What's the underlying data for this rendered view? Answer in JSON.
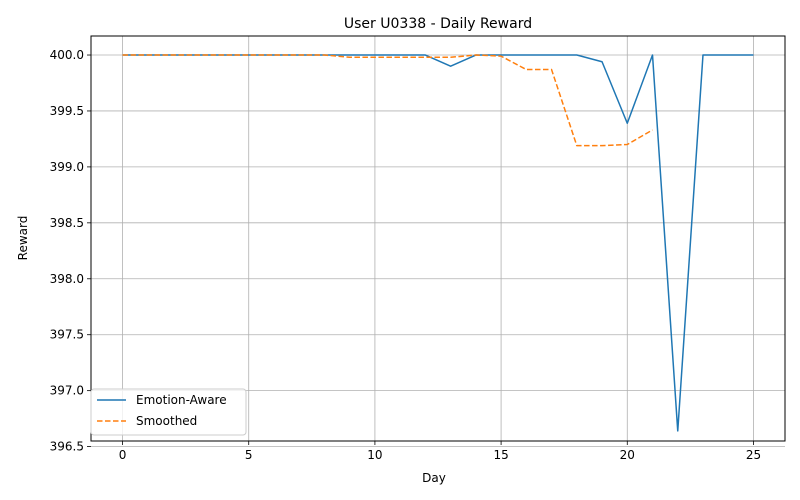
{
  "chart_data": {
    "type": "line",
    "title": "User U0338 - Daily Reward",
    "xlabel": "Day",
    "ylabel": "Reward",
    "xlim": [
      -1.25,
      26.25
    ],
    "ylim": [
      396.55,
      400.17
    ],
    "xticks": [
      0,
      5,
      10,
      15,
      20,
      25
    ],
    "xtick_labels": [
      "0",
      "5",
      "10",
      "15",
      "20",
      "25"
    ],
    "yticks": [
      396.5,
      397.0,
      397.5,
      398.0,
      398.5,
      399.0,
      399.5,
      400.0
    ],
    "ytick_labels": [
      "396.5",
      "397.0",
      "397.5",
      "398.0",
      "398.5",
      "399.0",
      "399.5",
      "400.0"
    ],
    "grid": true,
    "legend_position": "lower left",
    "series": [
      {
        "name": "Emotion-Aware",
        "color": "#1f77b4",
        "style": "solid",
        "x": [
          0,
          1,
          2,
          3,
          4,
          5,
          6,
          7,
          8,
          9,
          10,
          11,
          12,
          13,
          14,
          15,
          16,
          17,
          18,
          19,
          20,
          21,
          22,
          23,
          24,
          25
        ],
        "y": [
          400.0,
          400.0,
          400.0,
          400.0,
          400.0,
          400.0,
          400.0,
          400.0,
          400.0,
          400.0,
          400.0,
          400.0,
          400.0,
          399.9,
          400.0,
          400.0,
          400.0,
          400.0,
          400.0,
          399.94,
          399.39,
          400.0,
          396.64,
          400.0,
          400.0,
          400.0
        ]
      },
      {
        "name": "Smoothed",
        "color": "#ff7f0e",
        "style": "dashed",
        "x": [
          0,
          1,
          2,
          3,
          4,
          5,
          6,
          7,
          8,
          9,
          10,
          11,
          12,
          13,
          14,
          15,
          16,
          17,
          18,
          19,
          20,
          21
        ],
        "y": [
          400.0,
          400.0,
          400.0,
          400.0,
          400.0,
          400.0,
          400.0,
          400.0,
          400.0,
          399.98,
          399.98,
          399.98,
          399.98,
          399.98,
          400.0,
          399.99,
          399.87,
          399.87,
          399.19,
          399.19,
          399.2,
          399.33
        ]
      }
    ]
  }
}
